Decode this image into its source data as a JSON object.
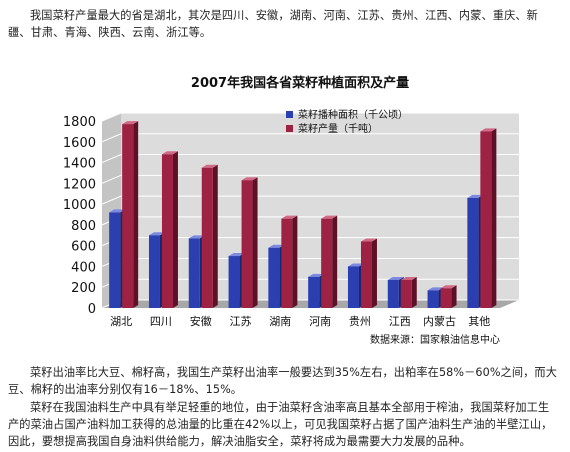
{
  "intro_text": "我国菜籽产量最大的省是湖北，其次是四川、安徽，湖南、河南、江苏、贵州、江西、内蒙、重庆、新疆、甘肃、青海、陕西、云南、浙江等。",
  "paragraph_1": "菜籽出油率比大豆、棉籽高，我国生产菜籽出油率一般要达到35%左右，出粕率在58%－60%之间，而大豆、棉籽的出油率分别仅有16－18%、15%。",
  "paragraph_2": "菜籽在我国油料生产中具有举足轻重的地位，由于油菜籽含油率高且基本全部用于榨油，我国菜籽加工生产的菜油占国产油料加工获得的总油量的比重在42%以上，可见我国菜籽占据了国产油料生产油的半壁江山，因此，要想提高我国自身油料供给能力，解决油脂安全，菜籽将成为最需要大力发展的品种。",
  "colors": {
    "area": "#2b3fb0",
    "area_side": "#1a2570",
    "output": "#9e2244",
    "output_side": "#5e1027",
    "wall": "#dcdcdc",
    "grid": "#ffffff"
  },
  "chart_data": {
    "type": "bar",
    "title": "2007年我国各省菜籽种植面积及产量",
    "categories": [
      "湖北",
      "四川",
      "安徽",
      "江苏",
      "湖南",
      "河南",
      "贵州",
      "江西",
      "内蒙古",
      "其他"
    ],
    "series": [
      {
        "name": "菜籽播种面积（千公顷）",
        "values": [
          920,
          700,
          670,
          500,
          580,
          300,
          400,
          270,
          170,
          1060
        ]
      },
      {
        "name": "菜籽产量（千吨）",
        "values": [
          1770,
          1480,
          1350,
          1230,
          860,
          860,
          640,
          270,
          190,
          1700
        ]
      }
    ],
    "y_ticks": [
      "0",
      "200",
      "400",
      "600",
      "800",
      "1000",
      "1200",
      "1400",
      "1600",
      "1800"
    ],
    "ylim": [
      0,
      1800
    ],
    "grid": true,
    "legend": "top-center",
    "source": "数据来源：国家粮油信息中心"
  }
}
